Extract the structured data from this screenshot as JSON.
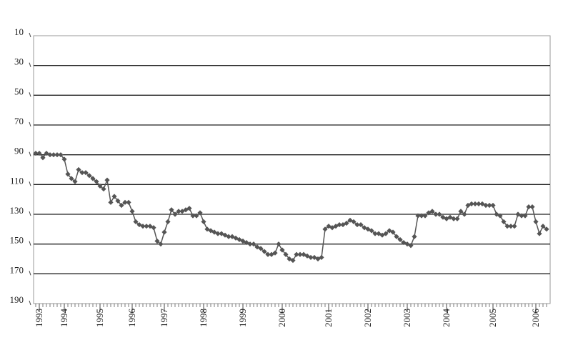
{
  "chart_data": {
    "type": "line",
    "categories": [
      null,
      "1993",
      null,
      null,
      null,
      null,
      null,
      null,
      "1994",
      null,
      null,
      null,
      null,
      null,
      null,
      null,
      null,
      null,
      "1995",
      null,
      null,
      null,
      null,
      null,
      null,
      null,
      null,
      "1996",
      null,
      null,
      null,
      null,
      null,
      null,
      null,
      null,
      "1997",
      null,
      null,
      null,
      null,
      null,
      null,
      null,
      null,
      null,
      null,
      "1998",
      null,
      null,
      null,
      null,
      null,
      null,
      null,
      null,
      null,
      null,
      "1999",
      null,
      null,
      null,
      null,
      null,
      null,
      null,
      null,
      null,
      null,
      "2000",
      null,
      null,
      null,
      null,
      null,
      null,
      null,
      null,
      null,
      null,
      null,
      null,
      "2001",
      null,
      null,
      null,
      null,
      null,
      null,
      null,
      null,
      null,
      null,
      "2002",
      null,
      null,
      null,
      null,
      null,
      null,
      null,
      null,
      null,
      null,
      "2003",
      null,
      null,
      null,
      null,
      null,
      null,
      null,
      null,
      null,
      null,
      "2004",
      null,
      null,
      null,
      null,
      null,
      null,
      null,
      null,
      null,
      null,
      null,
      null,
      "2005",
      null,
      null,
      null,
      null,
      null,
      null,
      null,
      null,
      null,
      null,
      null,
      "2006",
      null,
      null,
      null
    ],
    "values": [
      89,
      89,
      92,
      89,
      90,
      90,
      90,
      90,
      93,
      103,
      106,
      108,
      100,
      102,
      102,
      104,
      106,
      108,
      111,
      113,
      107,
      122,
      118,
      121,
      124,
      122,
      122,
      128,
      135,
      137,
      138,
      138,
      138,
      139,
      148,
      150,
      142,
      135,
      127,
      130,
      128,
      128,
      127,
      126,
      131,
      131,
      129,
      135,
      140,
      141,
      142,
      143,
      143,
      144,
      145,
      145,
      146,
      147,
      148,
      149,
      150,
      150,
      152,
      153,
      155,
      157,
      157,
      156,
      150,
      154,
      157,
      160,
      161,
      157,
      157,
      157,
      158,
      159,
      159,
      160,
      159,
      140,
      138,
      139,
      138,
      137,
      137,
      136,
      134,
      135,
      137,
      137,
      139,
      140,
      141,
      143,
      143,
      144,
      143,
      141,
      142,
      145,
      147,
      149,
      150,
      151,
      145,
      131,
      131,
      131,
      129,
      128,
      130,
      130,
      132,
      133,
      132,
      133,
      133,
      128,
      130,
      124,
      123,
      123,
      123,
      123,
      124,
      124,
      124,
      130,
      131,
      135,
      138,
      138,
      138,
      130,
      131,
      131,
      125,
      125,
      135,
      143,
      138,
      140
    ],
    "color": "#555555",
    "ylim": [
      10,
      190
    ],
    "yticks": [
      10,
      30,
      50,
      70,
      90,
      110,
      130,
      150,
      170,
      190
    ],
    "inverted": true,
    "grid": true
  }
}
